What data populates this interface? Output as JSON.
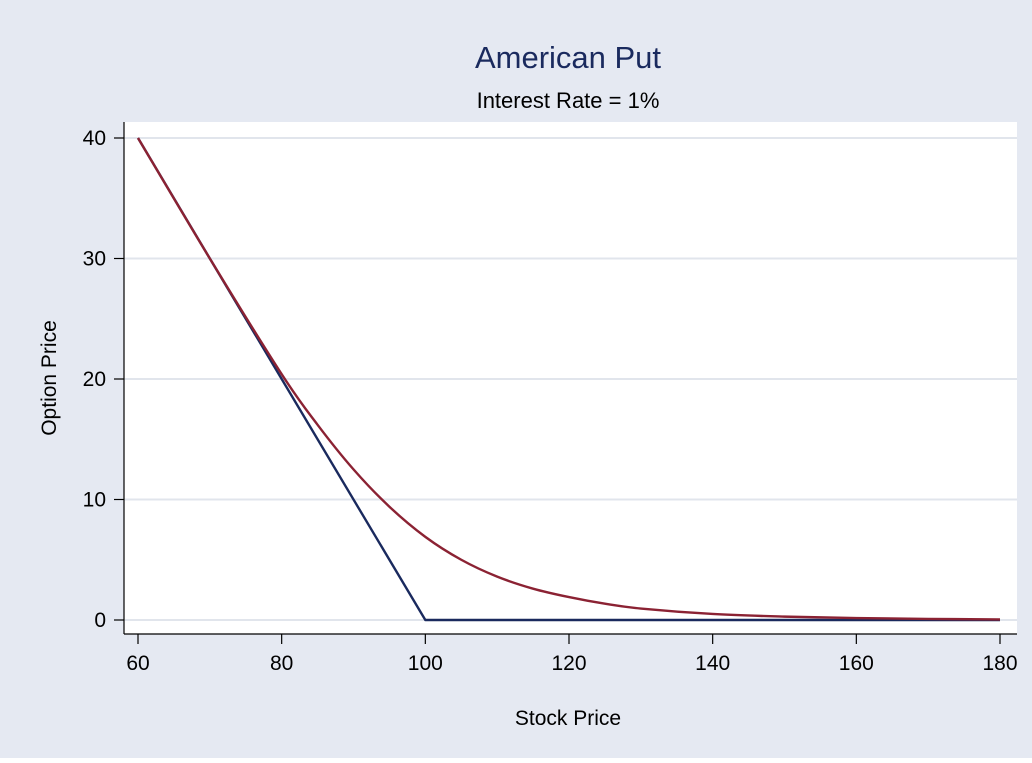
{
  "chart_data": {
    "type": "line",
    "title": "American Put",
    "subtitle": "Interest Rate = 1%",
    "xlabel": "Stock Price",
    "ylabel": "Option Price",
    "xlim": [
      60,
      180
    ],
    "ylim": [
      0,
      40
    ],
    "x_ticks": [
      60,
      80,
      100,
      120,
      140,
      160,
      180
    ],
    "y_ticks": [
      0,
      10,
      20,
      30,
      40
    ],
    "grid": "horizontal",
    "legend": "none",
    "series": [
      {
        "color": "#1a2a5e",
        "x": [
          60,
          100,
          180
        ],
        "values": [
          40,
          0,
          0
        ]
      },
      {
        "color": "#8b2233",
        "x": [
          60,
          70,
          80,
          85,
          90,
          95,
          100,
          105,
          110,
          115,
          120,
          125,
          130,
          140,
          150,
          160,
          170,
          180
        ],
        "values": [
          40,
          30,
          20.4,
          16.2,
          12.5,
          9.4,
          6.9,
          5.0,
          3.6,
          2.6,
          1.9,
          1.35,
          0.95,
          0.5,
          0.28,
          0.16,
          0.09,
          0.05
        ]
      }
    ]
  },
  "colors": {
    "background": "#e5e9f2",
    "plot_background": "#ffffff",
    "title": "#1a2a5e",
    "gridline": "#e1e5ec",
    "axis": "#000000"
  }
}
